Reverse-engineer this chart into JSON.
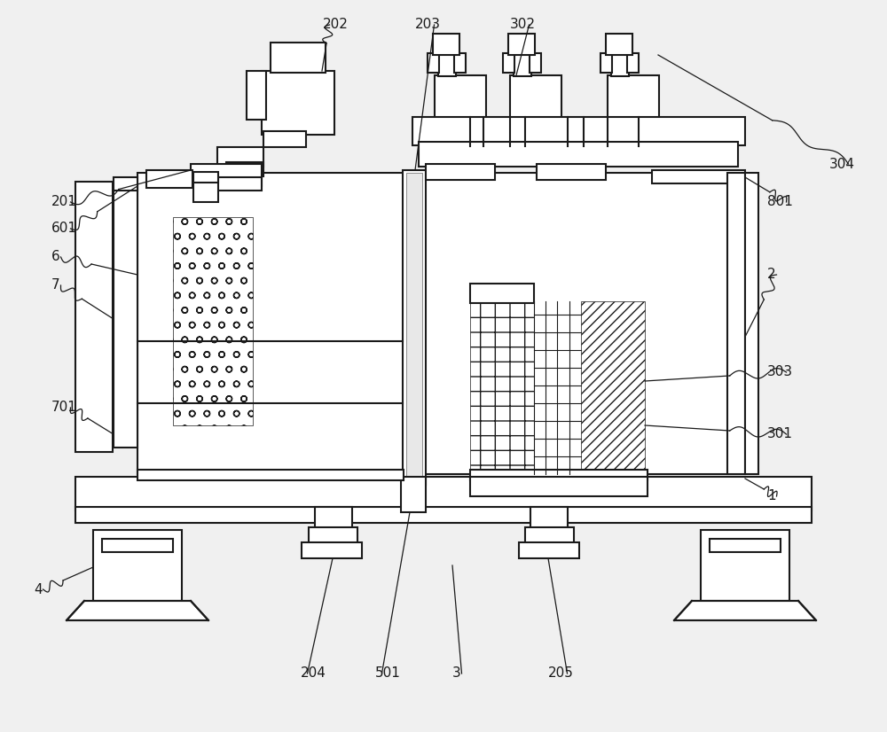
{
  "bg_color": "#f0f0f0",
  "line_color": "#1a1a1a",
  "lw": 1.5,
  "lw_thin": 0.8
}
